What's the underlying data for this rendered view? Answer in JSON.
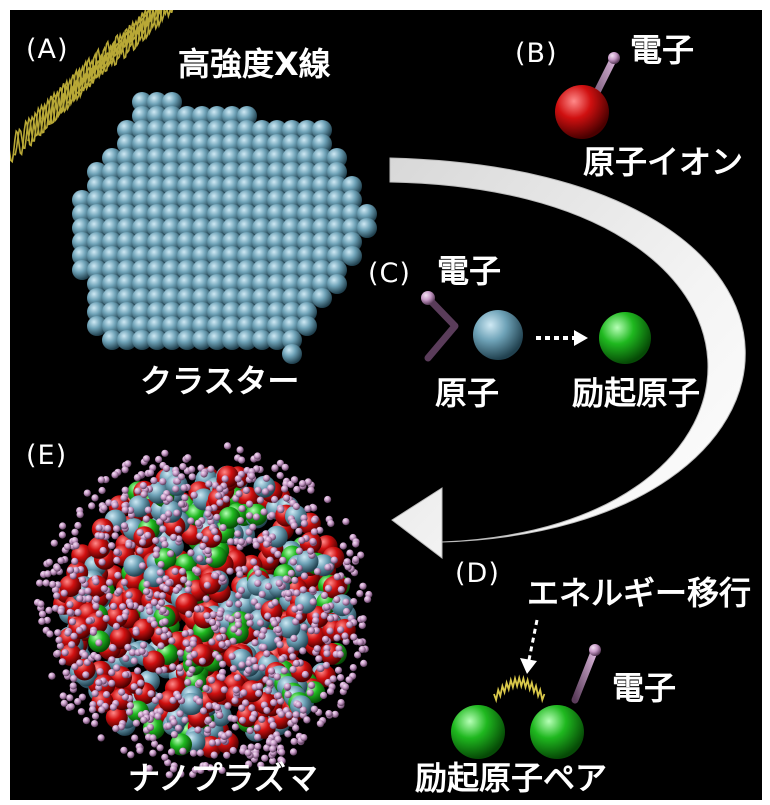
{
  "colors": {
    "background": "#000000",
    "cluster_atom": "#6fa3b8",
    "ion": "#d01010",
    "excited_atom": "#1fb81f",
    "electron": "#c79ac7",
    "xray_wave": "#b8a836",
    "arrow": "#ffffff"
  },
  "panels": {
    "a": {
      "tag": "(A)",
      "xray_label": "高強度X線",
      "cluster_label": "クラスター"
    },
    "b": {
      "tag": "(B)",
      "electron_label": "電子",
      "ion_label": "原子イオン"
    },
    "c": {
      "tag": "(C)",
      "electron_label": "電子",
      "atom_label": "原子",
      "excited_label": "励起原子"
    },
    "d": {
      "tag": "(D)",
      "transfer_label": "エネルギー移行",
      "electron_label": "電子",
      "pair_label": "励起原子ペア"
    },
    "e": {
      "tag": "(E)",
      "plasma_label": "ナノプラズマ"
    }
  }
}
